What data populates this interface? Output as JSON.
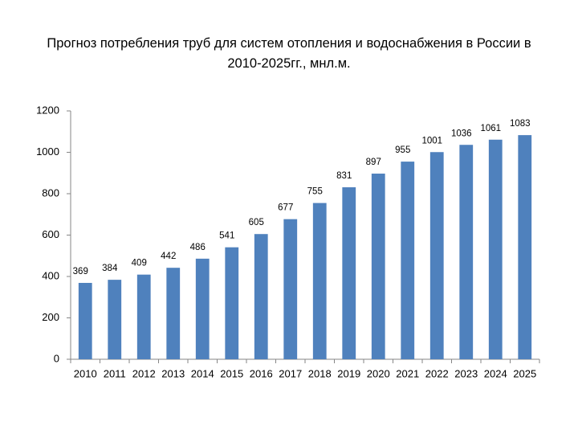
{
  "chart_data": {
    "type": "bar",
    "title": "Прогноз потребления труб для систем отопления и водоснабжения в России в 2010-2025гг., мнл.м.",
    "categories": [
      "2010",
      "2011",
      "2012",
      "2013",
      "2014",
      "2015",
      "2016",
      "2017",
      "2018",
      "2019",
      "2020",
      "2021",
      "2022",
      "2023",
      "2024",
      "2025"
    ],
    "values": [
      369,
      384,
      409,
      442,
      486,
      541,
      605,
      677,
      755,
      831,
      897,
      955,
      1001,
      1036,
      1061,
      1083
    ],
    "color": "#4f81bd",
    "ylim": [
      0,
      1200
    ],
    "yticks": [
      0,
      200,
      400,
      600,
      800,
      1000,
      1200
    ],
    "grid": false
  }
}
